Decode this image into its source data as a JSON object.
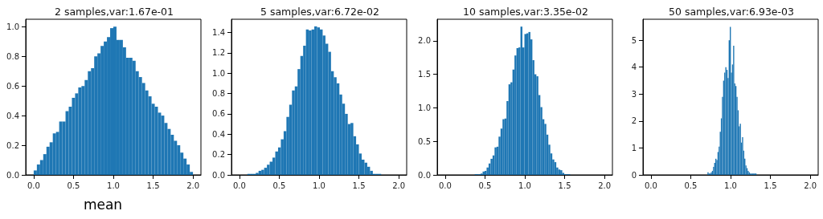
{
  "chart_data": [
    {
      "type": "histogram",
      "title": "2 samples,var:1.67e-01",
      "xlabel": "mean",
      "color": "#1f77b4",
      "bins": [
        0,
        0.04,
        0.08,
        0.12,
        0.16,
        0.2,
        0.24,
        0.28,
        0.32,
        0.36,
        0.4,
        0.44,
        0.48,
        0.52,
        0.56,
        0.6,
        0.64,
        0.68,
        0.72,
        0.76,
        0.8,
        0.84,
        0.88,
        0.92,
        0.96,
        1,
        1.04,
        1.08,
        1.12,
        1.16,
        1.2,
        1.24,
        1.28,
        1.32,
        1.36,
        1.4,
        1.44,
        1.48,
        1.52,
        1.56,
        1.6,
        1.64,
        1.68,
        1.72,
        1.76,
        1.8,
        1.84,
        1.88,
        1.92,
        1.96,
        2
      ],
      "values": [
        0.03,
        0.07,
        0.1,
        0.14,
        0.19,
        0.22,
        0.28,
        0.29,
        0.36,
        0.36,
        0.43,
        0.46,
        0.52,
        0.55,
        0.59,
        0.6,
        0.64,
        0.7,
        0.72,
        0.8,
        0.82,
        0.87,
        0.9,
        0.93,
        0.99,
        1.0,
        0.91,
        0.91,
        0.86,
        0.79,
        0.79,
        0.77,
        0.7,
        0.66,
        0.62,
        0.57,
        0.53,
        0.48,
        0.46,
        0.42,
        0.4,
        0.35,
        0.31,
        0.27,
        0.23,
        0.2,
        0.15,
        0.11,
        0.07,
        0.02
      ],
      "xlim": [
        -0.1,
        2.1
      ],
      "xticks": [
        {
          "value": 0,
          "label": "0.0"
        },
        {
          "value": 0.5,
          "label": "0.5"
        },
        {
          "value": 1,
          "label": "1.0"
        },
        {
          "value": 1.5,
          "label": "1.5"
        },
        {
          "value": 2,
          "label": "2.0"
        }
      ],
      "ylim": [
        0,
        1.05
      ],
      "yticks": [
        {
          "value": 0,
          "label": "0.0"
        },
        {
          "value": 0.2,
          "label": "0.2"
        },
        {
          "value": 0.4,
          "label": "0.4"
        },
        {
          "value": 0.6,
          "label": "0.6"
        },
        {
          "value": 0.8,
          "label": "0.8"
        },
        {
          "value": 1,
          "label": "1.0"
        }
      ],
      "grid": false
    },
    {
      "type": "histogram",
      "title": "5 samples,var:6.72e-02",
      "color": "#1f77b4",
      "bins": [
        0.1,
        0.135,
        0.17,
        0.205,
        0.24,
        0.275,
        0.31,
        0.345,
        0.38,
        0.415,
        0.45,
        0.485,
        0.52,
        0.555,
        0.59,
        0.625,
        0.66,
        0.695,
        0.73,
        0.765,
        0.8,
        0.835,
        0.87,
        0.905,
        0.94,
        0.975,
        1.01,
        1.045,
        1.08,
        1.115,
        1.15,
        1.185,
        1.22,
        1.255,
        1.29,
        1.325,
        1.36,
        1.395,
        1.43,
        1.465,
        1.5,
        1.535,
        1.57,
        1.605,
        1.64,
        1.675,
        1.71,
        1.745,
        1.78
      ],
      "values": [
        0.01,
        0.01,
        0.01,
        0.02,
        0.04,
        0.05,
        0.07,
        0.1,
        0.13,
        0.17,
        0.23,
        0.27,
        0.35,
        0.43,
        0.57,
        0.69,
        0.83,
        0.87,
        1.04,
        1.17,
        1.27,
        1.43,
        1.42,
        1.43,
        1.46,
        1.45,
        1.43,
        1.37,
        1.29,
        1.21,
        1.02,
        0.96,
        0.9,
        0.79,
        0.7,
        0.6,
        0.5,
        0.51,
        0.38,
        0.3,
        0.21,
        0.15,
        0.12,
        0.08,
        0.04,
        0.01,
        0.01,
        0.01
      ],
      "xlim": [
        -0.1,
        2.1
      ],
      "xticks": [
        {
          "value": 0,
          "label": "0.0"
        },
        {
          "value": 0.5,
          "label": "0.5"
        },
        {
          "value": 1,
          "label": "1.0"
        },
        {
          "value": 1.5,
          "label": "1.5"
        },
        {
          "value": 2,
          "label": "2.0"
        }
      ],
      "ylim": [
        0,
        1.53
      ],
      "yticks": [
        {
          "value": 0,
          "label": "0.0"
        },
        {
          "value": 0.2,
          "label": "0.2"
        },
        {
          "value": 0.4,
          "label": "0.4"
        },
        {
          "value": 0.6,
          "label": "0.6"
        },
        {
          "value": 0.8,
          "label": "0.8"
        },
        {
          "value": 1,
          "label": "1.0"
        },
        {
          "value": 1.2,
          "label": "1.2"
        },
        {
          "value": 1.4,
          "label": "1.4"
        }
      ],
      "grid": false
    },
    {
      "type": "histogram",
      "title": "10 samples,var:3.35e-02",
      "color": "#1f77b4",
      "bins": [
        0.37,
        0.395,
        0.42,
        0.445,
        0.47,
        0.495,
        0.52,
        0.545,
        0.57,
        0.595,
        0.62,
        0.645,
        0.67,
        0.695,
        0.72,
        0.745,
        0.77,
        0.795,
        0.82,
        0.845,
        0.87,
        0.895,
        0.92,
        0.945,
        0.97,
        0.995,
        1.02,
        1.045,
        1.07,
        1.095,
        1.12,
        1.145,
        1.17,
        1.195,
        1.22,
        1.245,
        1.27,
        1.295,
        1.32,
        1.345,
        1.37,
        1.395,
        1.42,
        1.445,
        1.47,
        1.495,
        1.52,
        1.545,
        1.57
      ],
      "values": [
        0.01,
        0.01,
        0.01,
        0.02,
        0.05,
        0.06,
        0.11,
        0.17,
        0.24,
        0.29,
        0.41,
        0.42,
        0.57,
        0.69,
        0.83,
        0.84,
        1.1,
        1.35,
        1.38,
        1.57,
        1.78,
        1.89,
        1.9,
        2.21,
        1.9,
        2.1,
        2.11,
        2.13,
        2.02,
        1.71,
        1.5,
        1.47,
        1.19,
        1.01,
        0.83,
        0.76,
        0.6,
        0.45,
        0.32,
        0.23,
        0.19,
        0.11,
        0.08,
        0.07,
        0.03,
        0.01,
        0.01,
        0.01
      ],
      "xlim": [
        -0.1,
        2.1
      ],
      "xticks": [
        {
          "value": 0,
          "label": "0.0"
        },
        {
          "value": 0.5,
          "label": "0.5"
        },
        {
          "value": 1,
          "label": "1.0"
        },
        {
          "value": 1.5,
          "label": "1.5"
        },
        {
          "value": 2,
          "label": "2.0"
        }
      ],
      "ylim": [
        0,
        2.32
      ],
      "yticks": [
        {
          "value": 0,
          "label": "0.0"
        },
        {
          "value": 0.5,
          "label": "0.5"
        },
        {
          "value": 1,
          "label": "1.0"
        },
        {
          "value": 1.5,
          "label": "1.5"
        },
        {
          "value": 2,
          "label": "2.0"
        }
      ],
      "grid": false
    },
    {
      "type": "histogram",
      "title": "50 samples,var:6.93e-03",
      "color": "#1f77b4",
      "bins": [
        0.71,
        0.724,
        0.738,
        0.752,
        0.766,
        0.78,
        0.794,
        0.808,
        0.822,
        0.836,
        0.85,
        0.864,
        0.878,
        0.892,
        0.906,
        0.92,
        0.934,
        0.948,
        0.962,
        0.976,
        0.99,
        1.004,
        1.018,
        1.032,
        1.046,
        1.06,
        1.074,
        1.088,
        1.102,
        1.116,
        1.13,
        1.144,
        1.158,
        1.172,
        1.186,
        1.2,
        1.214,
        1.228,
        1.242,
        1.256,
        1.27,
        1.284,
        1.298,
        1.312,
        1.326
      ],
      "values": [
        0.1,
        0.05,
        0.05,
        0.1,
        0.15,
        0.3,
        0.45,
        0.6,
        0.55,
        0.85,
        1.05,
        1.6,
        2.1,
        2.9,
        3.5,
        3.8,
        4.0,
        3.9,
        3.6,
        5.0,
        5.5,
        3.8,
        4.1,
        4.8,
        3.4,
        3.3,
        2.9,
        2.4,
        1.8,
        1.9,
        1.2,
        1.4,
        0.9,
        0.6,
        0.35,
        0.25,
        0.15,
        0.1,
        0.05,
        0.05,
        0.05,
        0.05,
        0.05,
        0.05
      ],
      "xlim": [
        -0.1,
        2.1
      ],
      "xticks": [
        {
          "value": 0,
          "label": "0.0"
        },
        {
          "value": 0.5,
          "label": "0.5"
        },
        {
          "value": 1,
          "label": "1.0"
        },
        {
          "value": 1.5,
          "label": "1.5"
        },
        {
          "value": 2,
          "label": "2.0"
        }
      ],
      "ylim": [
        0,
        5.78
      ],
      "yticks": [
        0,
        1,
        2,
        3,
        4,
        5
      ],
      "grid": false
    }
  ]
}
